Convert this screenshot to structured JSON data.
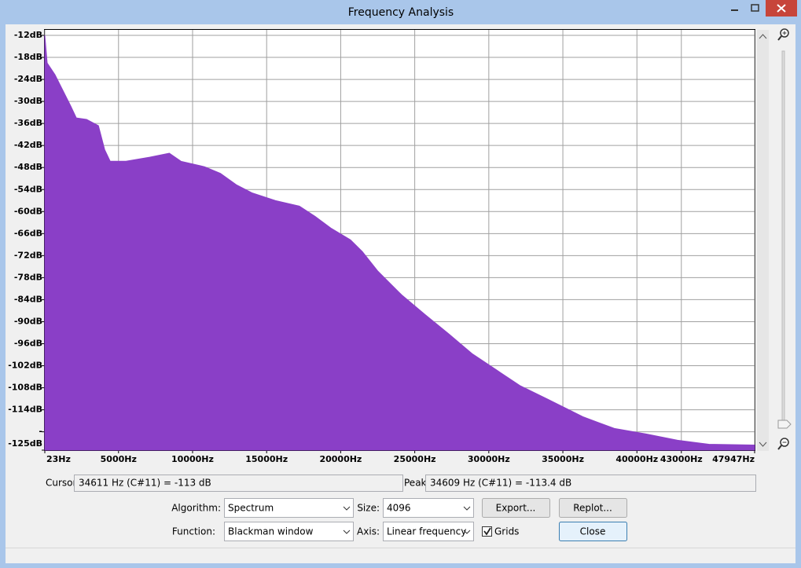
{
  "window": {
    "title": "Frequency Analysis"
  },
  "chart_data": {
    "type": "area",
    "x": [
      23,
      180,
      710,
      1245,
      1780,
      2150,
      2840,
      3640,
      4060,
      4440,
      5500,
      7100,
      8430,
      9220,
      10820,
      11880,
      12950,
      14010,
      15600,
      17200,
      18270,
      19330,
      20660,
      21460,
      22520,
      24120,
      25710,
      27310,
      28900,
      30500,
      32100,
      34220,
      36350,
      38480,
      40610,
      42740,
      44860,
      47947
    ],
    "values": [
      -12,
      -19.5,
      -22.7,
      -27,
      -31.3,
      -34.5,
      -34.9,
      -36.6,
      -43.1,
      -46.3,
      -46.3,
      -45.2,
      -44.1,
      -46.3,
      -47.8,
      -49.6,
      -52.7,
      -54.9,
      -57,
      -58.5,
      -61.3,
      -64.5,
      -67.7,
      -70.9,
      -76.3,
      -82.7,
      -88.1,
      -93.4,
      -98.8,
      -103.1,
      -107.4,
      -111.6,
      -115.9,
      -119.1,
      -120.6,
      -122.3,
      -123.4,
      -123.6
    ],
    "color": "#8a3fc7",
    "xlim": [
      23,
      47947
    ],
    "ylim": [
      -125,
      -10.5
    ],
    "xticks": [
      {
        "value": 23,
        "label": "23Hz"
      },
      {
        "value": 5000,
        "label": "5000Hz"
      },
      {
        "value": 10000,
        "label": "10000Hz"
      },
      {
        "value": 15000,
        "label": "15000Hz"
      },
      {
        "value": 20000,
        "label": "20000Hz"
      },
      {
        "value": 25000,
        "label": "25000Hz"
      },
      {
        "value": 30000,
        "label": "30000Hz"
      },
      {
        "value": 35000,
        "label": "35000Hz"
      },
      {
        "value": 40000,
        "label": "40000Hz"
      },
      {
        "value": 43000,
        "label": "43000Hz"
      },
      {
        "value": 47947,
        "label": "47947Hz"
      }
    ],
    "yticks": [
      {
        "value": -12,
        "label": "-12dB"
      },
      {
        "value": -18,
        "label": "-18dB"
      },
      {
        "value": -24,
        "label": "-24dB"
      },
      {
        "value": -30,
        "label": "-30dB"
      },
      {
        "value": -36,
        "label": "-36dB"
      },
      {
        "value": -42,
        "label": "-42dB"
      },
      {
        "value": -48,
        "label": "-48dB"
      },
      {
        "value": -54,
        "label": "-54dB"
      },
      {
        "value": -60,
        "label": "-60dB"
      },
      {
        "value": -66,
        "label": "-66dB"
      },
      {
        "value": -72,
        "label": "-72dB"
      },
      {
        "value": -78,
        "label": "-78dB"
      },
      {
        "value": -84,
        "label": "-84dB"
      },
      {
        "value": -90,
        "label": "-90dB"
      },
      {
        "value": -96,
        "label": "-96dB"
      },
      {
        "value": -102,
        "label": "-102dB"
      },
      {
        "value": -108,
        "label": "-108dB"
      },
      {
        "value": -114,
        "label": "-114dB"
      },
      {
        "value": -120,
        "label": "-"
      },
      {
        "value": -125,
        "label": "-125dB"
      }
    ],
    "grid": true
  },
  "cursor": {
    "label": "Cursor:",
    "value": "34611 Hz (C#11) = -113 dB"
  },
  "peak": {
    "label": "Peak:",
    "value": "34609 Hz (C#11) = -113.4 dB"
  },
  "controls": {
    "algorithm": {
      "label": "Algorithm:",
      "value": "Spectrum"
    },
    "size": {
      "label": "Size:",
      "value": "4096"
    },
    "function": {
      "label": "Function:",
      "value": "Blackman window"
    },
    "axis": {
      "label": "Axis:",
      "value": "Linear frequency"
    },
    "grids": {
      "label": "Grids",
      "checked": true
    }
  },
  "buttons": {
    "export": "Export...",
    "replot": "Replot...",
    "close": "Close"
  }
}
